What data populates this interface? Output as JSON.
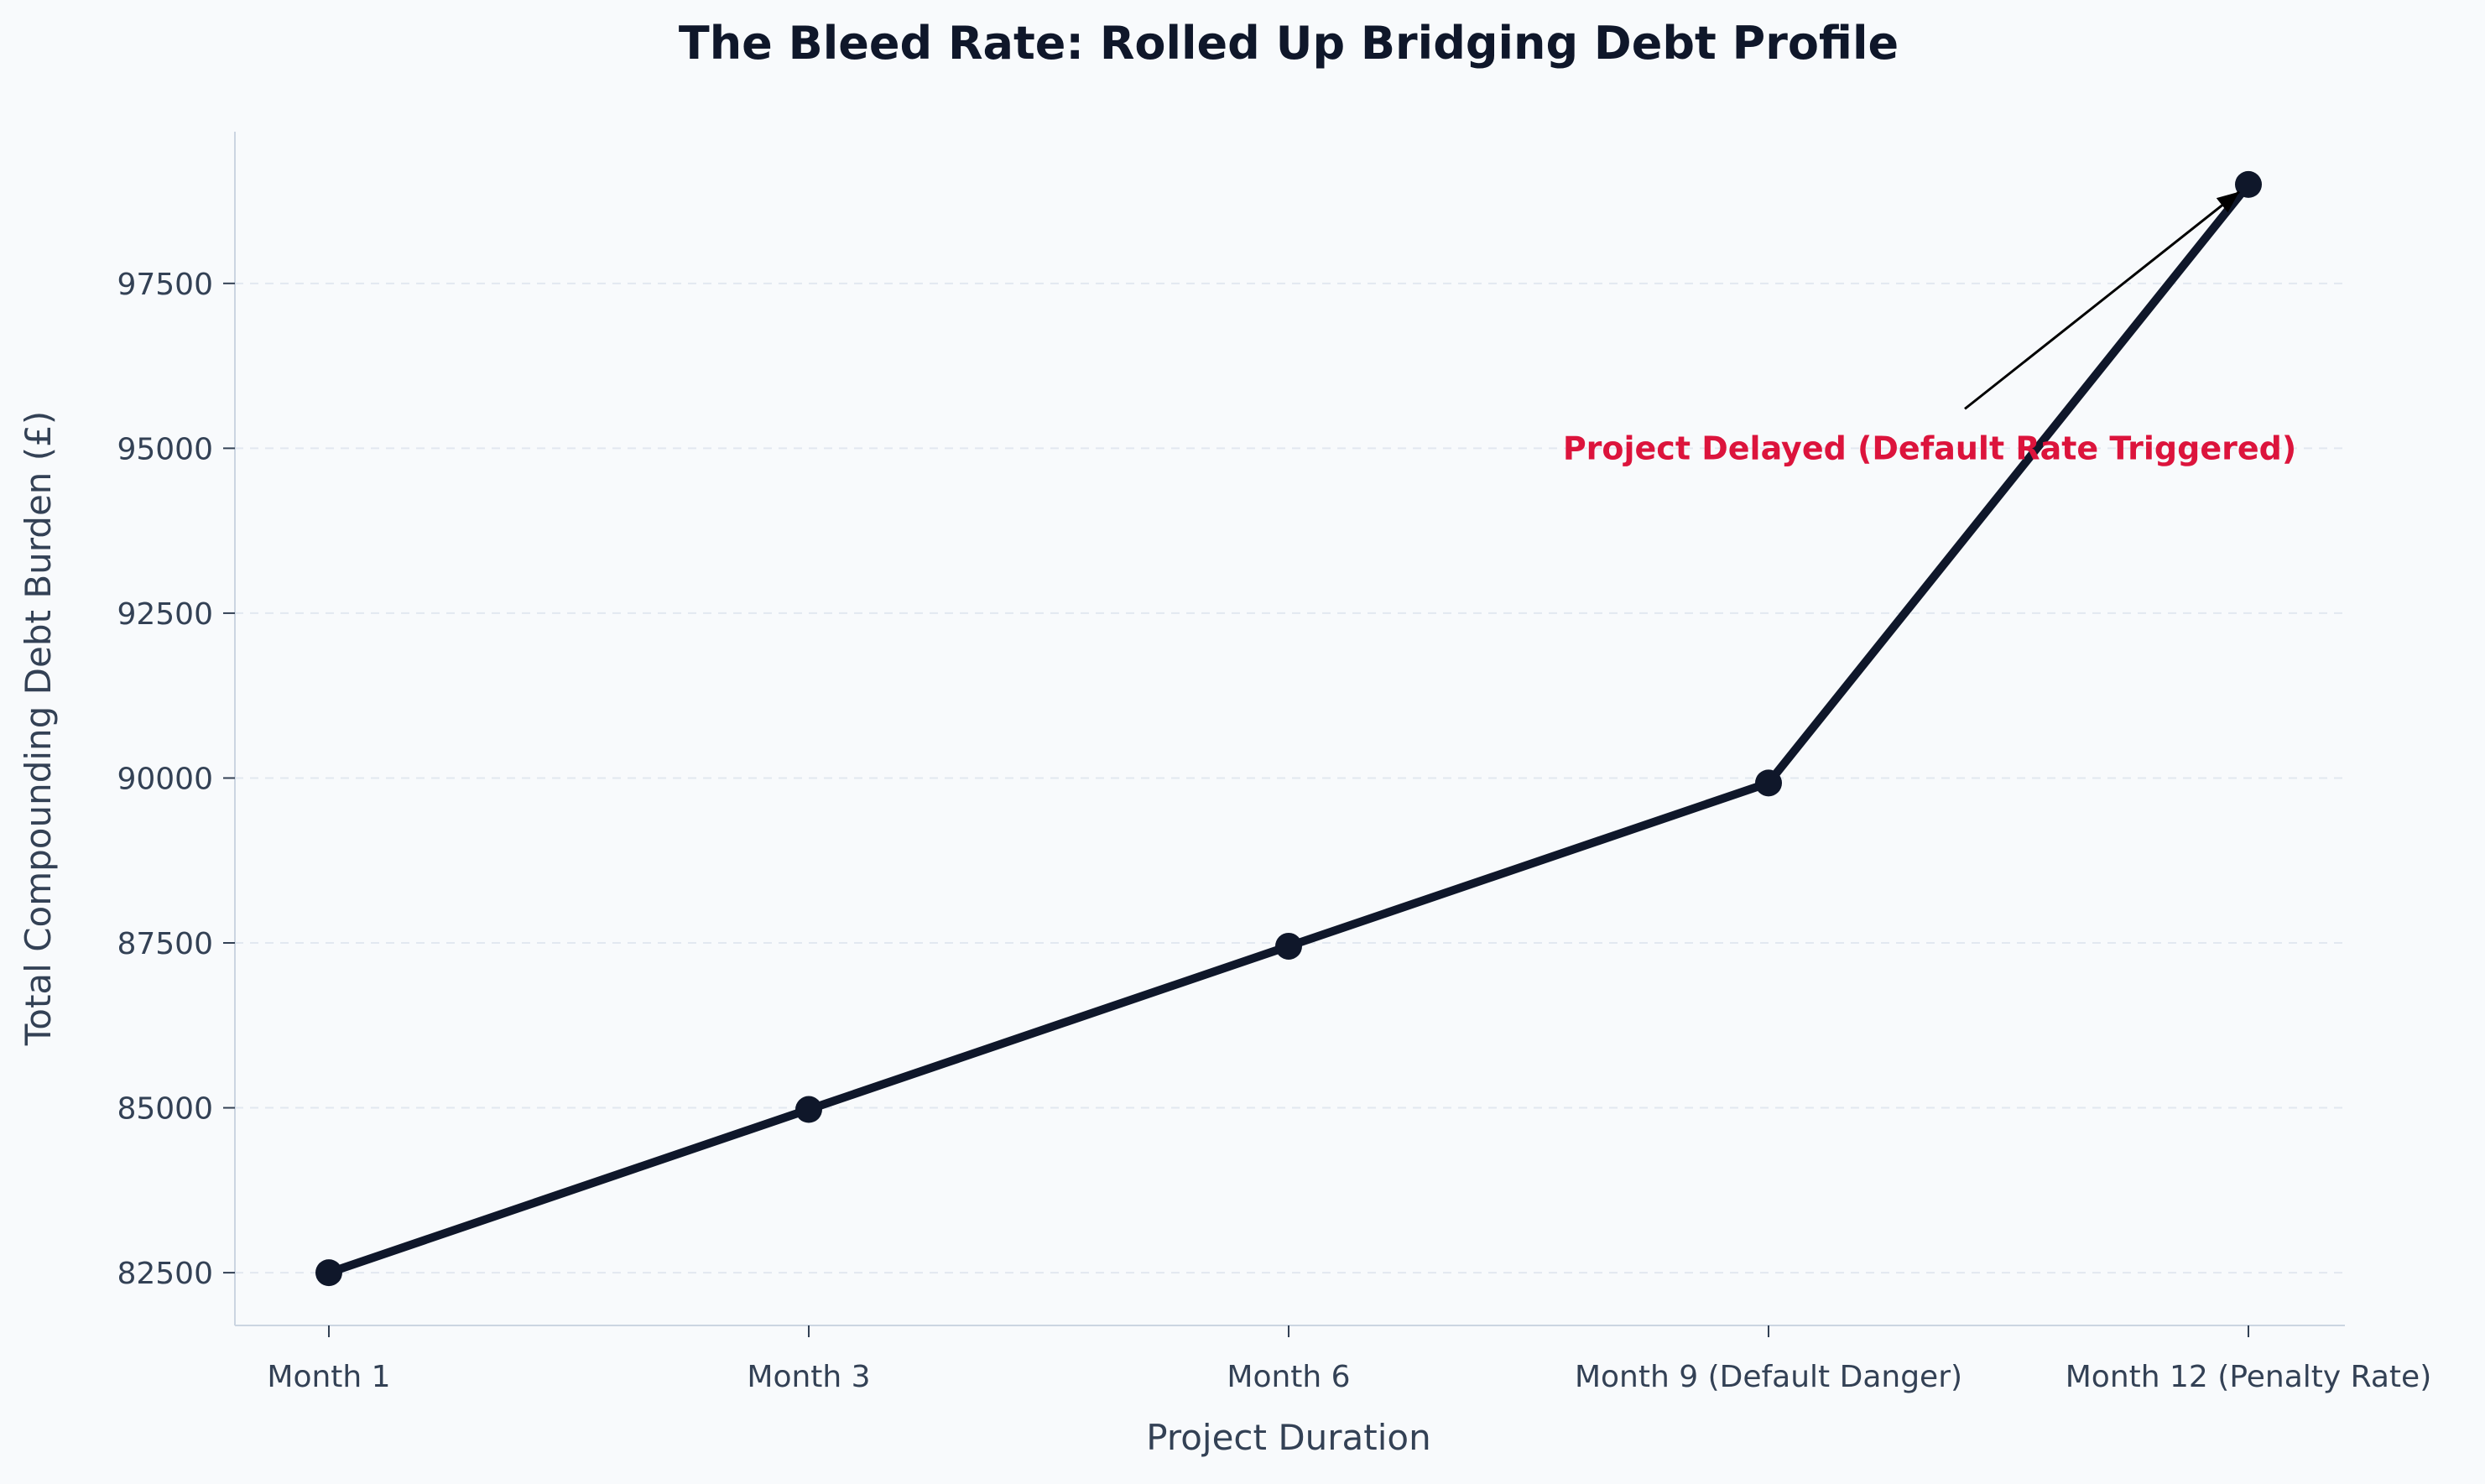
{
  "chart_data": {
    "type": "line",
    "title": "The Bleed Rate: Rolled Up Bridging Debt Profile",
    "xlabel": "Project Duration",
    "ylabel": "Total Compounding Debt Burden (£)",
    "categories": [
      "Month 1",
      "Month 3",
      "Month 6",
      "Month 9 (Default Danger)",
      "Month 12 (Penalty Rate)"
    ],
    "series": [
      {
        "values": [
          82500,
          84975,
          87450,
          89925,
          99000
        ]
      }
    ],
    "yticks": [
      82500,
      85000,
      87500,
      90000,
      92500,
      95000,
      97500
    ],
    "ytick_labels": [
      "82500",
      "85000",
      "87500",
      "90000",
      "92500",
      "95000",
      "97500"
    ],
    "ylim": [
      81700,
      99800
    ],
    "grid": "horizontal dashed",
    "annotation": {
      "text": "Project Delayed (Default Rate Triggered)",
      "target_category": "Month 12 (Penalty Rate)",
      "target_value": 99000,
      "text_value": 95000
    },
    "colors": {
      "line": "#0f172a",
      "marker": "#0f172a",
      "annotation": "#dc143c",
      "grid": "#e2e8f0",
      "axis": "#cbd5e1",
      "text": "#334155",
      "background": "#f8fafc"
    }
  }
}
